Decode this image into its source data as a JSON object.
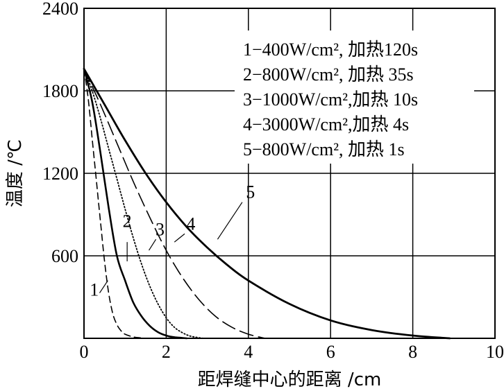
{
  "chart_data": {
    "type": "line",
    "xlabel": "距焊缝中心的距离 /cm",
    "ylabel": "温度 /℃",
    "xlim": [
      0,
      10
    ],
    "ylim": [
      0,
      2400
    ],
    "x_ticks": [
      "0",
      "2",
      "4",
      "6",
      "8",
      "10"
    ],
    "y_ticks": [
      "600",
      "1200",
      "1800",
      "2400"
    ],
    "grid": true,
    "legend": {
      "placement": "top-right",
      "entries": [
        "1−400W/cm², 加热120s",
        "2−800W/cm², 加热 35s",
        "3−1000W/cm²,加热 10s",
        "4−3000W/cm²,加热 4s",
        "5−800W/cm², 加热 1s"
      ]
    },
    "series": [
      {
        "name": "1",
        "line_style": "dashed",
        "x": [
          0,
          0.1,
          0.2,
          0.3,
          0.4,
          0.5,
          0.6,
          0.7,
          0.8,
          0.9,
          1.0,
          1.2,
          1.4,
          1.5
        ],
        "y": [
          1960,
          1750,
          1450,
          1150,
          850,
          560,
          330,
          180,
          100,
          55,
          30,
          10,
          3,
          0
        ]
      },
      {
        "name": "2",
        "line_style": "solid",
        "x": [
          0,
          0.2,
          0.4,
          0.6,
          0.8,
          1.0,
          1.2,
          1.4,
          1.6,
          1.8,
          2.0,
          2.2,
          2.5
        ],
        "y": [
          1960,
          1720,
          1350,
          950,
          600,
          420,
          260,
          160,
          90,
          45,
          20,
          8,
          0
        ]
      },
      {
        "name": "3",
        "line_style": "dotted",
        "x": [
          0,
          0.2,
          0.4,
          0.6,
          0.8,
          1.0,
          1.2,
          1.4,
          1.6,
          1.8,
          2.0,
          2.2,
          2.4,
          2.6,
          2.9
        ],
        "y": [
          1960,
          1800,
          1600,
          1380,
          1160,
          940,
          730,
          540,
          380,
          250,
          150,
          80,
          40,
          15,
          0
        ]
      },
      {
        "name": "4",
        "line_style": "long-dash",
        "x": [
          0,
          0.4,
          0.8,
          1.2,
          1.6,
          2.0,
          2.4,
          2.8,
          3.2,
          3.6,
          4.0,
          4.4
        ],
        "y": [
          1960,
          1700,
          1420,
          1140,
          880,
          640,
          440,
          280,
          160,
          80,
          30,
          0
        ]
      },
      {
        "name": "5",
        "line_style": "solid-thick",
        "x": [
          0,
          0.5,
          1.0,
          1.5,
          2.0,
          2.5,
          3.0,
          3.5,
          4.0,
          5.0,
          6.0,
          7.0,
          8.0,
          8.9
        ],
        "y": [
          1960,
          1700,
          1440,
          1200,
          990,
          810,
          660,
          530,
          420,
          250,
          130,
          60,
          20,
          0
        ]
      }
    ],
    "curve_labels": [
      {
        "text": "1",
        "x": 0.25,
        "y": 310
      },
      {
        "text": "2",
        "x": 1.05,
        "y": 810
      },
      {
        "text": "3",
        "x": 1.85,
        "y": 750
      },
      {
        "text": "4",
        "x": 2.6,
        "y": 790
      },
      {
        "text": "5",
        "x": 4.05,
        "y": 1020
      }
    ]
  }
}
